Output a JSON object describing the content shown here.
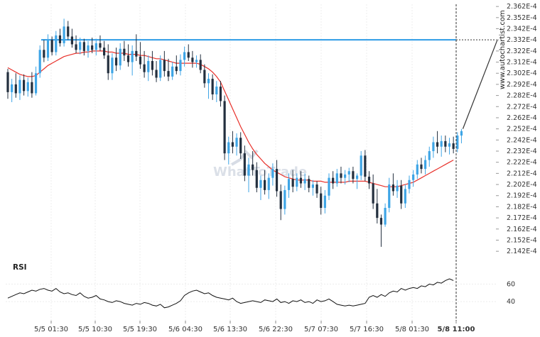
{
  "chart_data": {
    "type": "candlestick",
    "price_axis": {
      "labels": [
        "2.362E-4",
        "2.352E-4",
        "2.342E-4",
        "2.332E-4",
        "2.322E-4",
        "2.312E-4",
        "2.302E-4",
        "2.292E-4",
        "2.282E-4",
        "2.272E-4",
        "2.262E-4",
        "2.252E-4",
        "2.242E-4",
        "2.232E-4",
        "2.222E-4",
        "2.212E-4",
        "2.202E-4",
        "2.192E-4",
        "2.182E-4",
        "2.172E-4",
        "2.162E-4",
        "2.152E-4",
        "2.142E-4"
      ],
      "range": [
        0.0002137,
        0.0002364
      ]
    },
    "x_axis": {
      "labels": [
        "5/5 01:30",
        "5/5 10:30",
        "5/5 19:30",
        "5/6 04:30",
        "5/6 13:30",
        "5/6 22:30",
        "5/7 07:30",
        "5/7 16:30",
        "5/8 01:30",
        "5/8 11:00"
      ],
      "highlight": "5/8 11:00"
    },
    "resistance_level": 0.0002332,
    "candles": [
      {
        "o": 2.303,
        "h": 2.306,
        "l": 2.279,
        "c": 2.285
      },
      {
        "o": 2.285,
        "h": 2.297,
        "l": 2.276,
        "c": 2.292
      },
      {
        "o": 2.292,
        "h": 2.302,
        "l": 2.28,
        "c": 2.284
      },
      {
        "o": 2.284,
        "h": 2.3,
        "l": 2.278,
        "c": 2.296
      },
      {
        "o": 2.296,
        "h": 2.301,
        "l": 2.282,
        "c": 2.286
      },
      {
        "o": 2.286,
        "h": 2.298,
        "l": 2.281,
        "c": 2.294
      },
      {
        "o": 2.294,
        "h": 2.303,
        "l": 2.28,
        "c": 2.284
      },
      {
        "o": 2.284,
        "h": 2.308,
        "l": 2.282,
        "c": 2.302
      },
      {
        "o": 2.302,
        "h": 2.327,
        "l": 2.298,
        "c": 2.323
      },
      {
        "o": 2.323,
        "h": 2.332,
        "l": 2.312,
        "c": 2.316
      },
      {
        "o": 2.316,
        "h": 2.337,
        "l": 2.313,
        "c": 2.332
      },
      {
        "o": 2.332,
        "h": 2.335,
        "l": 2.318,
        "c": 2.321
      },
      {
        "o": 2.321,
        "h": 2.34,
        "l": 2.318,
        "c": 2.336
      },
      {
        "o": 2.336,
        "h": 2.342,
        "l": 2.326,
        "c": 2.329
      },
      {
        "o": 2.329,
        "h": 2.351,
        "l": 2.326,
        "c": 2.344
      },
      {
        "o": 2.344,
        "h": 2.349,
        "l": 2.332,
        "c": 2.335
      },
      {
        "o": 2.335,
        "h": 2.342,
        "l": 2.325,
        "c": 2.328
      },
      {
        "o": 2.328,
        "h": 2.336,
        "l": 2.32,
        "c": 2.323
      },
      {
        "o": 2.323,
        "h": 2.334,
        "l": 2.319,
        "c": 2.33
      },
      {
        "o": 2.33,
        "h": 2.333,
        "l": 2.318,
        "c": 2.322
      },
      {
        "o": 2.322,
        "h": 2.331,
        "l": 2.316,
        "c": 2.327
      },
      {
        "o": 2.327,
        "h": 2.334,
        "l": 2.32,
        "c": 2.323
      },
      {
        "o": 2.323,
        "h": 2.333,
        "l": 2.318,
        "c": 2.329
      },
      {
        "o": 2.329,
        "h": 2.336,
        "l": 2.322,
        "c": 2.325
      },
      {
        "o": 2.325,
        "h": 2.331,
        "l": 2.315,
        "c": 2.318
      },
      {
        "o": 2.318,
        "h": 2.328,
        "l": 2.296,
        "c": 2.302
      },
      {
        "o": 2.302,
        "h": 2.32,
        "l": 2.296,
        "c": 2.316
      },
      {
        "o": 2.316,
        "h": 2.325,
        "l": 2.304,
        "c": 2.309
      },
      {
        "o": 2.309,
        "h": 2.329,
        "l": 2.305,
        "c": 2.324
      },
      {
        "o": 2.324,
        "h": 2.331,
        "l": 2.313,
        "c": 2.318
      },
      {
        "o": 2.318,
        "h": 2.328,
        "l": 2.308,
        "c": 2.312
      },
      {
        "o": 2.312,
        "h": 2.327,
        "l": 2.3,
        "c": 2.322
      },
      {
        "o": 2.322,
        "h": 2.337,
        "l": 2.313,
        "c": 2.317
      },
      {
        "o": 2.317,
        "h": 2.33,
        "l": 2.306,
        "c": 2.31
      },
      {
        "o": 2.31,
        "h": 2.322,
        "l": 2.298,
        "c": 2.303
      },
      {
        "o": 2.303,
        "h": 2.318,
        "l": 2.295,
        "c": 2.313
      },
      {
        "o": 2.313,
        "h": 2.322,
        "l": 2.3,
        "c": 2.305
      },
      {
        "o": 2.305,
        "h": 2.313,
        "l": 2.294,
        "c": 2.298
      },
      {
        "o": 2.298,
        "h": 2.318,
        "l": 2.295,
        "c": 2.314
      },
      {
        "o": 2.314,
        "h": 2.322,
        "l": 2.299,
        "c": 2.304
      },
      {
        "o": 2.304,
        "h": 2.315,
        "l": 2.295,
        "c": 2.299
      },
      {
        "o": 2.299,
        "h": 2.312,
        "l": 2.296,
        "c": 2.308
      },
      {
        "o": 2.308,
        "h": 2.318,
        "l": 2.301,
        "c": 2.304
      },
      {
        "o": 2.304,
        "h": 2.319,
        "l": 2.3,
        "c": 2.314
      },
      {
        "o": 2.314,
        "h": 2.326,
        "l": 2.308,
        "c": 2.321
      },
      {
        "o": 2.321,
        "h": 2.328,
        "l": 2.313,
        "c": 2.316
      },
      {
        "o": 2.316,
        "h": 2.322,
        "l": 2.307,
        "c": 2.312
      },
      {
        "o": 2.312,
        "h": 2.318,
        "l": 2.307,
        "c": 2.314
      },
      {
        "o": 2.314,
        "h": 2.319,
        "l": 2.302,
        "c": 2.305
      },
      {
        "o": 2.305,
        "h": 2.31,
        "l": 2.289,
        "c": 2.293
      },
      {
        "o": 2.293,
        "h": 2.302,
        "l": 2.279,
        "c": 2.297
      },
      {
        "o": 2.297,
        "h": 2.301,
        "l": 2.278,
        "c": 2.283
      },
      {
        "o": 2.283,
        "h": 2.295,
        "l": 2.276,
        "c": 2.29
      },
      {
        "o": 2.29,
        "h": 2.295,
        "l": 2.272,
        "c": 2.277
      },
      {
        "o": 2.277,
        "h": 2.282,
        "l": 2.224,
        "c": 2.23
      },
      {
        "o": 2.23,
        "h": 2.245,
        "l": 2.22,
        "c": 2.24
      },
      {
        "o": 2.24,
        "h": 2.25,
        "l": 2.23,
        "c": 2.236
      },
      {
        "o": 2.236,
        "h": 2.248,
        "l": 2.228,
        "c": 2.244
      },
      {
        "o": 2.244,
        "h": 2.249,
        "l": 2.225,
        "c": 2.23
      },
      {
        "o": 2.23,
        "h": 2.237,
        "l": 2.205,
        "c": 2.21
      },
      {
        "o": 2.21,
        "h": 2.226,
        "l": 2.195,
        "c": 2.22
      },
      {
        "o": 2.22,
        "h": 2.232,
        "l": 2.21,
        "c": 2.215
      },
      {
        "o": 2.215,
        "h": 2.222,
        "l": 2.195,
        "c": 2.199
      },
      {
        "o": 2.199,
        "h": 2.21,
        "l": 2.188,
        "c": 2.206
      },
      {
        "o": 2.206,
        "h": 2.215,
        "l": 2.193,
        "c": 2.197
      },
      {
        "o": 2.197,
        "h": 2.212,
        "l": 2.189,
        "c": 2.208
      },
      {
        "o": 2.208,
        "h": 2.221,
        "l": 2.201,
        "c": 2.216
      },
      {
        "o": 2.216,
        "h": 2.224,
        "l": 2.191,
        "c": 2.196
      },
      {
        "o": 2.196,
        "h": 2.202,
        "l": 2.17,
        "c": 2.18
      },
      {
        "o": 2.18,
        "h": 2.201,
        "l": 2.175,
        "c": 2.197
      },
      {
        "o": 2.197,
        "h": 2.212,
        "l": 2.19,
        "c": 2.207
      },
      {
        "o": 2.207,
        "h": 2.215,
        "l": 2.195,
        "c": 2.2
      },
      {
        "o": 2.2,
        "h": 2.212,
        "l": 2.196,
        "c": 2.208
      },
      {
        "o": 2.208,
        "h": 2.214,
        "l": 2.199,
        "c": 2.203
      },
      {
        "o": 2.203,
        "h": 2.212,
        "l": 2.197,
        "c": 2.207
      },
      {
        "o": 2.207,
        "h": 2.21,
        "l": 2.195,
        "c": 2.199
      },
      {
        "o": 2.199,
        "h": 2.206,
        "l": 2.192,
        "c": 2.202
      },
      {
        "o": 2.202,
        "h": 2.205,
        "l": 2.19,
        "c": 2.194
      },
      {
        "o": 2.194,
        "h": 2.2,
        "l": 2.175,
        "c": 2.181
      },
      {
        "o": 2.181,
        "h": 2.197,
        "l": 2.176,
        "c": 2.192
      },
      {
        "o": 2.192,
        "h": 2.212,
        "l": 2.188,
        "c": 2.208
      },
      {
        "o": 2.208,
        "h": 2.214,
        "l": 2.198,
        "c": 2.203
      },
      {
        "o": 2.203,
        "h": 2.216,
        "l": 2.2,
        "c": 2.212
      },
      {
        "o": 2.212,
        "h": 2.218,
        "l": 2.203,
        "c": 2.208
      },
      {
        "o": 2.208,
        "h": 2.215,
        "l": 2.202,
        "c": 2.211
      },
      {
        "o": 2.211,
        "h": 2.217,
        "l": 2.204,
        "c": 2.214
      },
      {
        "o": 2.214,
        "h": 2.218,
        "l": 2.203,
        "c": 2.207
      },
      {
        "o": 2.207,
        "h": 2.212,
        "l": 2.198,
        "c": 2.21
      },
      {
        "o": 2.21,
        "h": 2.232,
        "l": 2.206,
        "c": 2.228
      },
      {
        "o": 2.228,
        "h": 2.233,
        "l": 2.205,
        "c": 2.209
      },
      {
        "o": 2.209,
        "h": 2.214,
        "l": 2.198,
        "c": 2.203
      },
      {
        "o": 2.203,
        "h": 2.211,
        "l": 2.18,
        "c": 2.185
      },
      {
        "o": 2.185,
        "h": 2.198,
        "l": 2.167,
        "c": 2.172
      },
      {
        "o": 2.172,
        "h": 2.175,
        "l": 2.146,
        "c": 2.166
      },
      {
        "o": 2.166,
        "h": 2.185,
        "l": 2.164,
        "c": 2.181
      },
      {
        "o": 2.181,
        "h": 2.208,
        "l": 2.177,
        "c": 2.202
      },
      {
        "o": 2.202,
        "h": 2.212,
        "l": 2.192,
        "c": 2.196
      },
      {
        "o": 2.196,
        "h": 2.206,
        "l": 2.19,
        "c": 2.201
      },
      {
        "o": 2.201,
        "h": 2.206,
        "l": 2.18,
        "c": 2.185
      },
      {
        "o": 2.185,
        "h": 2.202,
        "l": 2.181,
        "c": 2.198
      },
      {
        "o": 2.198,
        "h": 2.21,
        "l": 2.194,
        "c": 2.206
      },
      {
        "o": 2.206,
        "h": 2.215,
        "l": 2.2,
        "c": 2.211
      },
      {
        "o": 2.211,
        "h": 2.224,
        "l": 2.207,
        "c": 2.22
      },
      {
        "o": 2.22,
        "h": 2.226,
        "l": 2.212,
        "c": 2.216
      },
      {
        "o": 2.216,
        "h": 2.228,
        "l": 2.211,
        "c": 2.224
      },
      {
        "o": 2.224,
        "h": 2.236,
        "l": 2.218,
        "c": 2.232
      },
      {
        "o": 2.232,
        "h": 2.245,
        "l": 2.226,
        "c": 2.24
      },
      {
        "o": 2.24,
        "h": 2.25,
        "l": 2.23,
        "c": 2.236
      },
      {
        "o": 2.236,
        "h": 2.246,
        "l": 2.227,
        "c": 2.241
      },
      {
        "o": 2.241,
        "h": 2.246,
        "l": 2.231,
        "c": 2.236
      },
      {
        "o": 2.236,
        "h": 2.244,
        "l": 2.229,
        "c": 2.239
      },
      {
        "o": 2.239,
        "h": 2.245,
        "l": 2.23,
        "c": 2.234
      },
      {
        "o": 2.234,
        "h": 2.249,
        "l": 2.231,
        "c": 2.246
      },
      {
        "o": 2.246,
        "h": 2.252,
        "l": 2.239,
        "c": 2.25
      }
    ],
    "moving_average": [
      2.307,
      2.305,
      2.303,
      2.301,
      2.3,
      2.299,
      2.299,
      2.3,
      2.303,
      2.306,
      2.309,
      2.311,
      2.313,
      2.315,
      2.317,
      2.318,
      2.319,
      2.32,
      2.32,
      2.321,
      2.321,
      2.322,
      2.322,
      2.322,
      2.322,
      2.321,
      2.321,
      2.32,
      2.32,
      2.32,
      2.319,
      2.319,
      2.319,
      2.318,
      2.318,
      2.317,
      2.316,
      2.315,
      2.315,
      2.314,
      2.313,
      2.312,
      2.311,
      2.311,
      2.311,
      2.311,
      2.311,
      2.311,
      2.31,
      2.308,
      2.306,
      2.303,
      2.299,
      2.294,
      2.286,
      2.278,
      2.27,
      2.262,
      2.254,
      2.247,
      2.24,
      2.234,
      2.229,
      2.225,
      2.221,
      2.218,
      2.215,
      2.213,
      2.211,
      2.209,
      2.208,
      2.207,
      2.206,
      2.206,
      2.206,
      2.206,
      2.205,
      2.205,
      2.205,
      2.204,
      2.204,
      2.204,
      2.204,
      2.204,
      2.204,
      2.205,
      2.205,
      2.205,
      2.205,
      2.205,
      2.204,
      2.203,
      2.202,
      2.201,
      2.2,
      2.2,
      2.2,
      2.2,
      2.201,
      2.202,
      2.203,
      2.204,
      2.206,
      2.208,
      2.21,
      2.212,
      2.214,
      2.216,
      2.218,
      2.22,
      2.222,
      2.224
    ],
    "rsi": {
      "label": "RSI",
      "ticks": [
        "60",
        "40"
      ],
      "values": [
        44,
        46,
        48,
        50,
        49,
        51,
        53,
        52,
        54,
        55,
        53,
        52,
        55,
        51,
        49,
        50,
        48,
        47,
        50,
        46,
        44,
        45,
        47,
        43,
        42,
        40,
        39,
        41,
        40,
        38,
        37,
        36,
        38,
        37,
        39,
        38,
        36,
        35,
        37,
        33,
        34,
        36,
        38,
        41,
        47,
        50,
        52,
        53,
        51,
        49,
        50,
        47,
        45,
        44,
        43,
        42,
        44,
        40,
        38,
        39,
        40,
        41,
        40,
        39,
        42,
        41,
        40,
        43,
        39,
        40,
        38,
        41,
        40,
        42,
        39,
        40,
        38,
        42,
        40,
        41,
        43,
        40,
        37,
        36,
        35,
        36,
        35,
        36,
        37,
        38,
        45,
        47,
        45,
        48,
        46,
        50,
        52,
        51,
        55,
        53,
        55,
        56,
        55,
        58,
        57,
        60,
        59,
        62,
        61,
        64,
        66,
        64
      ]
    },
    "source_text": "www.autochartist.com",
    "watermark_text": "WhatToTrade"
  }
}
